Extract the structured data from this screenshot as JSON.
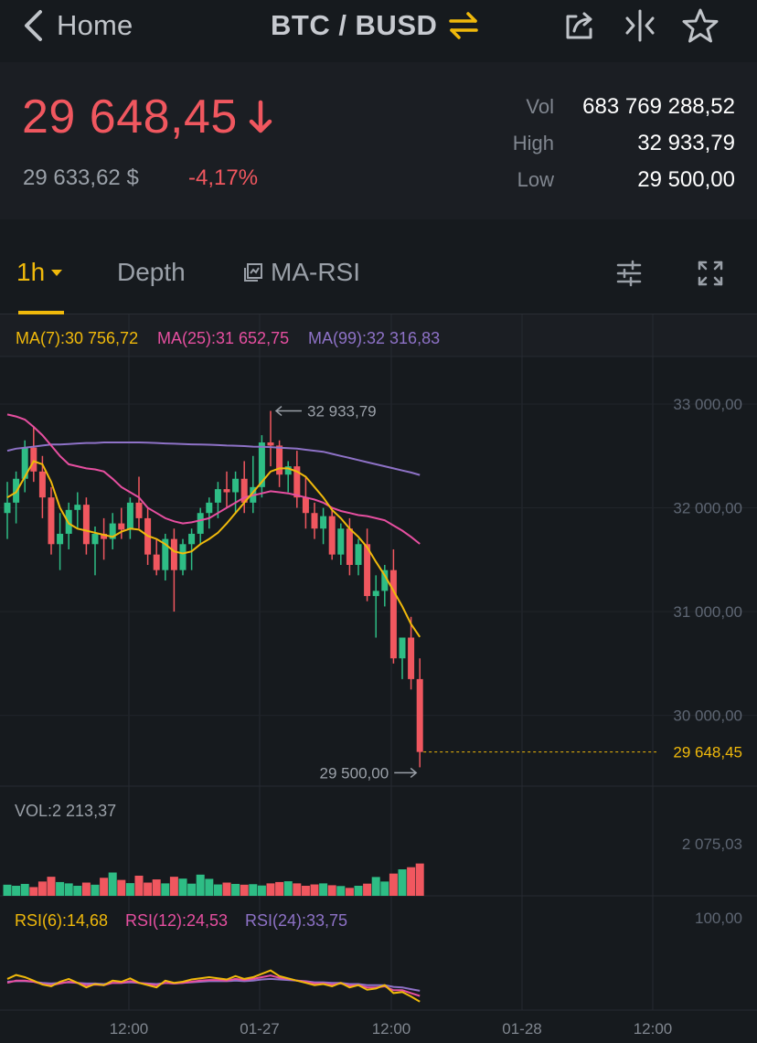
{
  "header": {
    "back_label": "Home",
    "pair": "BTC / BUSD"
  },
  "icons": {
    "back": "chevron-left-icon",
    "swap": "swap-arrows-icon",
    "share": "share-icon",
    "compare": "compare-icon",
    "favorite": "star-icon"
  },
  "ticker": {
    "last_price": "29 648,45",
    "direction": "down",
    "fiat_price": "29 633,62 $",
    "change_pct": "-4,17%",
    "vol_label": "Vol",
    "vol_value": "683 769 288,52",
    "high_label": "High",
    "high_value": "32 933,79",
    "low_label": "Low",
    "low_value": "29 500,00"
  },
  "tabs": {
    "interval": "1h",
    "depth": "Depth",
    "indicator": "MA-RSI"
  },
  "legend": {
    "ma7": "MA(7):30 756,72",
    "ma25": "MA(25):31 652,75",
    "ma99": "MA(99):32 316,83",
    "vol": "VOL:2 213,37",
    "rsi6": "RSI(6):14,68",
    "rsi12": "RSI(12):24,53",
    "rsi24": "RSI(24):33,75"
  },
  "colors": {
    "up": "#2ebd85",
    "down": "#f0575f",
    "ma7": "#f0b90b",
    "ma25": "#e64fa0",
    "ma99": "#8e72c7",
    "accent": "#f0b90b"
  },
  "chart_data": {
    "type": "candlestick",
    "price_axis_ticks": [
      "33 000,00",
      "32 000,00",
      "31 000,00",
      "30 000,00"
    ],
    "price_axis_values": [
      33000,
      32000,
      31000,
      30000
    ],
    "last_price_label": "29 648,45",
    "last_price": 29648.45,
    "high_marker": "32 933,79",
    "high_value": 32933.79,
    "low_marker": "29 500,00",
    "low_value": 29500,
    "volume_axis_tick": "2 075,03",
    "volume_axis_value": 2075.03,
    "rsi_axis_tick": "100,00",
    "time_ticks": [
      "12:00",
      "01-27",
      "12:00",
      "01-28",
      "12:00"
    ],
    "candles": [
      [
        31950,
        32250,
        31700,
        32050
      ],
      [
        32050,
        32350,
        31850,
        32280
      ],
      [
        32280,
        32650,
        32150,
        32580
      ],
      [
        32580,
        32780,
        32250,
        32350
      ],
      [
        32350,
        32500,
        31900,
        32100
      ],
      [
        32100,
        32200,
        31550,
        31650
      ],
      [
        31650,
        31950,
        31400,
        31750
      ],
      [
        31750,
        32050,
        31600,
        31980
      ],
      [
        31980,
        32150,
        31800,
        32030
      ],
      [
        32030,
        32100,
        31550,
        31650
      ],
      [
        31650,
        31820,
        31350,
        31750
      ],
      [
        31750,
        31900,
        31500,
        31700
      ],
      [
        31700,
        31950,
        31600,
        31850
      ],
      [
        31850,
        32000,
        31700,
        31790
      ],
      [
        31790,
        32100,
        31700,
        32050
      ],
      [
        32050,
        32300,
        31800,
        31900
      ],
      [
        31900,
        32000,
        31450,
        31550
      ],
      [
        31550,
        31700,
        31350,
        31400
      ],
      [
        31400,
        31750,
        31300,
        31700
      ],
      [
        31700,
        31800,
        31000,
        31400
      ],
      [
        31400,
        31700,
        31350,
        31650
      ],
      [
        31650,
        31800,
        31400,
        31750
      ],
      [
        31750,
        32000,
        31650,
        31950
      ],
      [
        31950,
        32100,
        31800,
        32050
      ],
      [
        32050,
        32250,
        31900,
        32180
      ],
      [
        32180,
        32350,
        32000,
        32150
      ],
      [
        32150,
        32350,
        31950,
        32280
      ],
      [
        32280,
        32450,
        31950,
        32050
      ],
      [
        32050,
        32500,
        31950,
        32200
      ],
      [
        32200,
        32700,
        32100,
        32630
      ],
      [
        32630,
        32934,
        32400,
        32600
      ],
      [
        32600,
        32650,
        32200,
        32320
      ],
      [
        32320,
        32450,
        32150,
        32400
      ],
      [
        32400,
        32550,
        32000,
        32100
      ],
      [
        32100,
        32300,
        31800,
        31950
      ],
      [
        31950,
        32050,
        31700,
        31800
      ],
      [
        31800,
        32000,
        31650,
        31920
      ],
      [
        31920,
        32000,
        31500,
        31550
      ],
      [
        31550,
        31850,
        31450,
        31800
      ],
      [
        31800,
        31900,
        31350,
        31450
      ],
      [
        31450,
        31700,
        31350,
        31650
      ],
      [
        31650,
        31800,
        31100,
        31150
      ],
      [
        31150,
        31350,
        30750,
        31200
      ],
      [
        31200,
        31450,
        31050,
        31400
      ],
      [
        31400,
        31600,
        30500,
        30550
      ],
      [
        30550,
        30750,
        30350,
        30750
      ],
      [
        30750,
        30950,
        30250,
        30350
      ],
      [
        30350,
        30550,
        29500,
        29648
      ]
    ],
    "volume": [
      420,
      380,
      450,
      330,
      540,
      720,
      520,
      470,
      380,
      500,
      420,
      680,
      880,
      600,
      480,
      760,
      500,
      620,
      470,
      720,
      650,
      460,
      800,
      640,
      430,
      500,
      450,
      420,
      440,
      390,
      470,
      520,
      550,
      470,
      380,
      430,
      470,
      400,
      370,
      300,
      380,
      460,
      710,
      540,
      840,
      1000,
      1080,
      1220
    ],
    "ma7": [
      32100,
      32150,
      32300,
      32450,
      32420,
      32250,
      32000,
      31850,
      31800,
      31780,
      31760,
      31740,
      31720,
      31770,
      31800,
      31790,
      31730,
      31700,
      31650,
      31580,
      31560,
      31580,
      31650,
      31700,
      31760,
      31850,
      31950,
      32050,
      32150,
      32250,
      32350,
      32380,
      32380,
      32350,
      32300,
      32200,
      32100,
      31980,
      31900,
      31800,
      31720,
      31620,
      31480,
      31350,
      31200,
      31050,
      30880,
      30756
    ],
    "ma25": [
      32900,
      32880,
      32850,
      32780,
      32700,
      32600,
      32500,
      32420,
      32400,
      32380,
      32370,
      32350,
      32280,
      32200,
      32150,
      32100,
      32000,
      31950,
      31900,
      31870,
      31850,
      31860,
      31880,
      31900,
      31950,
      32000,
      32050,
      32100,
      32120,
      32140,
      32160,
      32150,
      32140,
      32120,
      32100,
      32080,
      32050,
      32000,
      31970,
      31950,
      31930,
      31920,
      31900,
      31880,
      31830,
      31780,
      31720,
      31653
    ],
    "ma99": [
      32550,
      32570,
      32580,
      32590,
      32600,
      32610,
      32610,
      32615,
      32620,
      32625,
      32625,
      32630,
      32630,
      32630,
      32630,
      32630,
      32628,
      32625,
      32620,
      32618,
      32615,
      32612,
      32610,
      32608,
      32605,
      32600,
      32598,
      32595,
      32590,
      32588,
      32585,
      32580,
      32575,
      32570,
      32560,
      32550,
      32540,
      32520,
      32500,
      32480,
      32460,
      32440,
      32420,
      32400,
      32380,
      32360,
      32340,
      32317
    ],
    "rsi6": [
      55,
      62,
      58,
      52,
      45,
      42,
      50,
      55,
      48,
      40,
      46,
      44,
      52,
      50,
      56,
      48,
      44,
      40,
      52,
      48,
      50,
      54,
      56,
      58,
      56,
      54,
      60,
      55,
      58,
      64,
      70,
      60,
      56,
      52,
      48,
      44,
      46,
      42,
      48,
      40,
      44,
      36,
      38,
      44,
      30,
      32,
      24,
      15
    ],
    "rsi12": [
      48,
      52,
      52,
      50,
      46,
      44,
      47,
      50,
      48,
      44,
      45,
      44,
      48,
      48,
      51,
      48,
      46,
      44,
      48,
      47,
      48,
      50,
      52,
      53,
      53,
      52,
      55,
      53,
      55,
      58,
      61,
      57,
      55,
      52,
      50,
      47,
      47,
      45,
      47,
      43,
      44,
      40,
      40,
      42,
      35,
      35,
      30,
      25
    ],
    "rsi24": [
      50,
      51,
      51,
      50,
      48,
      47,
      48,
      49,
      48,
      47,
      47,
      46,
      48,
      48,
      49,
      48,
      47,
      46,
      48,
      47,
      48,
      49,
      50,
      51,
      51,
      51,
      52,
      51,
      52,
      54,
      55,
      54,
      53,
      52,
      51,
      49,
      49,
      48,
      48,
      46,
      46,
      44,
      44,
      44,
      41,
      40,
      37,
      34
    ]
  }
}
